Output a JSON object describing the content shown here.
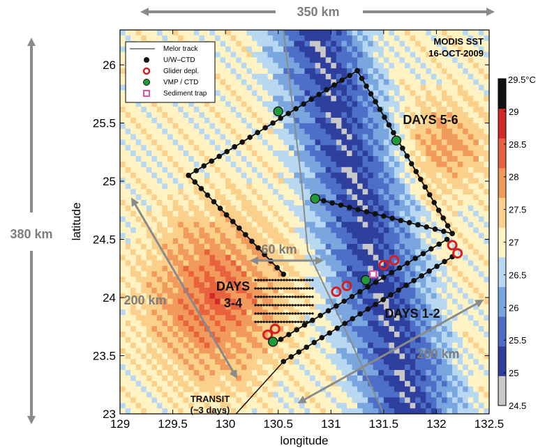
{
  "map": {
    "title_line1": "MODIS SST",
    "title_line2": "16-OCT-2009",
    "xlabel": "longitude",
    "ylabel": "latitude",
    "x_ticks": [
      "129",
      "129.5",
      "130",
      "130.5",
      "131",
      "131.5",
      "132",
      "132.5"
    ],
    "y_ticks": [
      "23",
      "23.5",
      "24",
      "24.5",
      "25",
      "25.5",
      "26"
    ],
    "xlim": [
      129,
      132.5
    ],
    "ylim": [
      23,
      26.3
    ]
  },
  "colorbar": {
    "unit_label": "29.5°C",
    "ticks": [
      "29",
      "28.5",
      "28",
      "27.5",
      "27",
      "26.5",
      "26",
      "25.5",
      "25",
      "24.5"
    ],
    "range": [
      24.5,
      29.5
    ],
    "colors": [
      "#c8c8c8",
      "#2e3f9e",
      "#4d6fc8",
      "#7aa6e0",
      "#b7d8f0",
      "#fff3c4",
      "#fbd08a",
      "#f29a5c",
      "#e8623e",
      "#d02a2a",
      "#111111"
    ]
  },
  "legend": {
    "items": [
      {
        "label": "Melor track",
        "symbol": "line",
        "color": "#8a8a8a"
      },
      {
        "label": "U/W–CTD",
        "symbol": "dot",
        "color": "#111111"
      },
      {
        "label": "Glider depl.",
        "symbol": "ring",
        "color": "#d42020"
      },
      {
        "label": "VMP / CTD",
        "symbol": "dot",
        "color": "#1f9a3a"
      },
      {
        "label": "Sediment trap",
        "symbol": "square",
        "color": "#e0509a"
      }
    ]
  },
  "annotations": {
    "top_distance": "350 km",
    "left_distance": "380 km",
    "mid_distance": "60 km",
    "left_diag_distance": "200 km",
    "right_diag_distance": "200 km",
    "days_56": "DAYS 5-6",
    "days_34_line1": "DAYS",
    "days_34_line2": "3-4",
    "days_12": "DAYS 1-2",
    "transit_line1": "TRANSIT",
    "transit_line2": "(~3 days)"
  },
  "chart_data": {
    "type": "map",
    "title": "MODIS SST 16-OCT-2009",
    "xlabel": "longitude",
    "ylabel": "latitude",
    "xlim": [
      129,
      132.5
    ],
    "ylim": [
      23,
      26.3
    ],
    "melor_track": [
      [
        130.55,
        26.3
      ],
      [
        130.72,
        25.0
      ],
      [
        130.78,
        24.4
      ],
      [
        131.2,
        23.6
      ],
      [
        131.5,
        23.0
      ]
    ],
    "ship_track_days_5_6": [
      [
        131.25,
        25.95
      ],
      [
        129.65,
        25.05
      ],
      [
        130.55,
        24.2
      ]
    ],
    "ship_track_days_5_6_return": [
      [
        131.25,
        25.95
      ],
      [
        132.15,
        24.55
      ],
      [
        130.85,
        24.85
      ]
    ],
    "ship_track_days_1_2": [
      [
        130.45,
        23.6
      ],
      [
        132.1,
        24.5
      ]
    ],
    "ship_track_days_1_2_b": [
      [
        130.55,
        23.45
      ],
      [
        132.15,
        24.35
      ]
    ],
    "transit_track": [
      [
        130.1,
        23.0
      ],
      [
        130.55,
        23.45
      ]
    ],
    "vmp_ctd_stations": [
      [
        130.5,
        25.6
      ],
      [
        131.62,
        25.35
      ],
      [
        130.85,
        24.85
      ],
      [
        131.33,
        24.15
      ],
      [
        130.45,
        23.62
      ]
    ],
    "glider_deployments": [
      [
        130.4,
        23.68
      ],
      [
        130.47,
        23.73
      ],
      [
        131.05,
        24.05
      ],
      [
        131.15,
        24.1
      ],
      [
        131.5,
        24.28
      ],
      [
        131.6,
        24.32
      ],
      [
        132.15,
        24.45
      ],
      [
        132.2,
        24.38
      ]
    ],
    "sediment_trap": [
      [
        131.4,
        24.2
      ]
    ],
    "sst_range_C": [
      24.5,
      29.5
    ]
  }
}
